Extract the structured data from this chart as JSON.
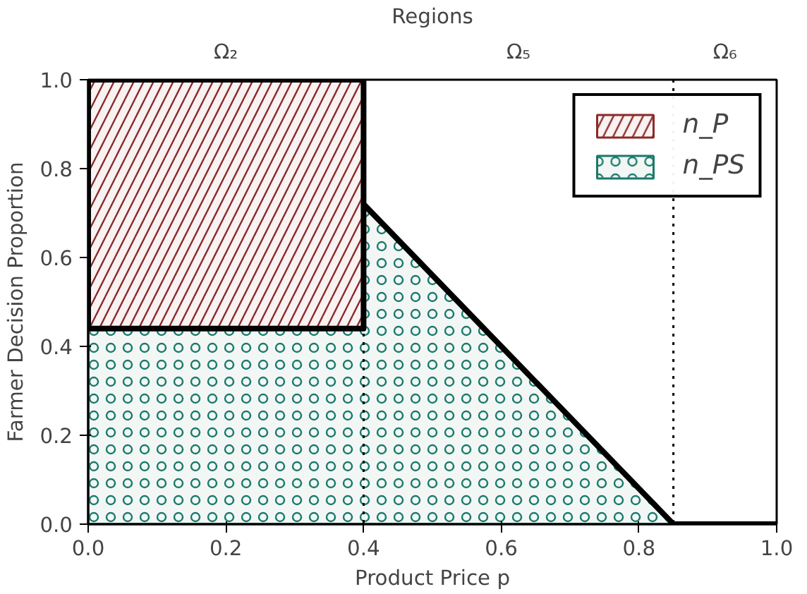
{
  "chart_data": {
    "type": "area",
    "stacked": true,
    "xlabel": "Product Price p",
    "ylabel": "Farmer Decision Proportion",
    "annotations": [
      "Regions",
      "Ω₂",
      "Ω₅",
      "Ω₆"
    ],
    "x": [
      0,
      0.4,
      0.4,
      0.85,
      1.0
    ],
    "series": [
      {
        "name": "n_PS",
        "color": "#1a7a6a",
        "values": [
          0.44,
          0.44,
          0.72,
          0,
          0
        ]
      },
      {
        "name": "n_P",
        "color": "#8b2a2a",
        "values": [
          0.56,
          0.56,
          0,
          0,
          0
        ]
      }
    ],
    "xlim": [
      0,
      1
    ],
    "ylim": [
      0,
      1
    ],
    "xticks": [
      {
        "value": 0,
        "label": "0.0"
      },
      0.2,
      0.4,
      0.6,
      0.8,
      {
        "value": 1,
        "label": "1.0"
      }
    ],
    "yticks": [
      {
        "value": 0,
        "label": "0.0"
      },
      0.2,
      0.4,
      0.6,
      0.8,
      {
        "value": 1,
        "label": "1.0"
      }
    ],
    "ref_lines": [
      {
        "axis": "x",
        "value": 0.4,
        "line_style": "dotted"
      },
      {
        "axis": "x",
        "value": 0.85,
        "line_style": "dotted"
      }
    ],
    "legend": "top right",
    "grid": false
  }
}
